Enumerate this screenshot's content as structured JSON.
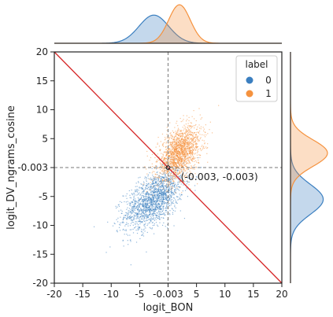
{
  "chart_data": {
    "type": "scatter",
    "subtype": "jointplot",
    "xlabel": "logit_BON",
    "ylabel": "logit_DV_ngrams_cosine",
    "xlim": [
      -20,
      20
    ],
    "ylim": [
      -20,
      20
    ],
    "x_ticks": [
      "-20",
      "-15",
      "-10",
      "-5",
      "-0.003",
      "5",
      "10",
      "15",
      "20"
    ],
    "y_ticks": [
      "20",
      "15",
      "10",
      "5",
      "-0.003",
      "-5",
      "-10",
      "-15",
      "-20"
    ],
    "x_tick_values": [
      -20,
      -15,
      -10,
      -5,
      -0.003,
      5,
      10,
      15,
      20
    ],
    "y_tick_values": [
      20,
      15,
      10,
      5,
      -0.003,
      -5,
      -10,
      -15,
      -20
    ],
    "grid": false,
    "legend": {
      "title": "label",
      "placement": "top-right",
      "entries": [
        {
          "label": "0",
          "color": "#3b7fc0"
        },
        {
          "label": "1",
          "color": "#f5923e"
        }
      ]
    },
    "series": [
      {
        "name": "0",
        "color": "#3b7fc0",
        "x_center": -2.5,
        "y_center": -5.5,
        "x_spread": 2.6,
        "y_spread": 2.6,
        "correlation": 0.55
      },
      {
        "name": "1",
        "color": "#f5923e",
        "x_center": 2.0,
        "y_center": 2.5,
        "x_spread": 1.9,
        "y_spread": 2.3,
        "correlation": 0.45
      }
    ],
    "reference_lines": [
      {
        "type": "diagonal",
        "color": "#d62728",
        "from": [
          -20,
          20
        ],
        "to": [
          20,
          -20
        ]
      },
      {
        "type": "vline",
        "x": -0.003,
        "style": "dashed",
        "color": "#777777"
      },
      {
        "type": "hline",
        "y": -0.003,
        "style": "dashed",
        "color": "#777777"
      }
    ],
    "annotations": [
      {
        "text": "(-0.003, -0.003)",
        "x": -0.003,
        "y": -0.003
      }
    ]
  }
}
